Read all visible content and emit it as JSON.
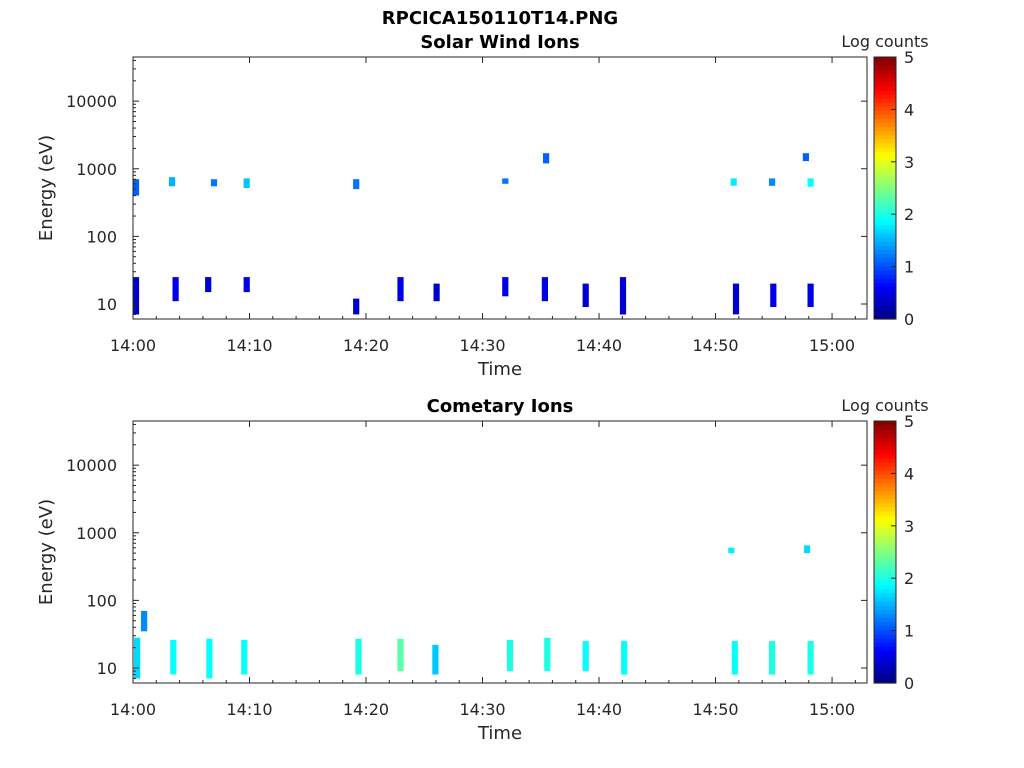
{
  "chart_data": [
    {
      "type": "heatmap",
      "figure_title": "RPCICA150110T14.PNG",
      "title": "Solar Wind Ions",
      "xlabel": "Time",
      "ylabel": "Energy (eV)",
      "colorbar_label": "Log counts",
      "colormap": "jet",
      "clim": [
        0,
        5
      ],
      "colorbar_ticks": [
        "0",
        "1",
        "2",
        "3",
        "4",
        "5"
      ],
      "x_range": [
        "14:00",
        "15:03"
      ],
      "y_scale": "log",
      "y_range": [
        6,
        45000
      ],
      "x_ticks": [
        "14:00",
        "14:10",
        "14:20",
        "14:30",
        "14:40",
        "14:50",
        "15:00"
      ],
      "y_ticks": [
        "10",
        "100",
        "1000",
        "10000"
      ],
      "blocks": [
        {
          "t": 0.1,
          "emin": 7,
          "emax": 25,
          "v": 0.4
        },
        {
          "t": 0.1,
          "emin": 400,
          "emax": 700,
          "v": 1.1
        },
        {
          "t": 3.5,
          "emin": 11,
          "emax": 25,
          "v": 0.5
        },
        {
          "t": 3.2,
          "emin": 550,
          "emax": 750,
          "v": 1.5
        },
        {
          "t": 6.3,
          "emin": 15,
          "emax": 25,
          "v": 0.4
        },
        {
          "t": 6.8,
          "emin": 550,
          "emax": 700,
          "v": 1.2
        },
        {
          "t": 9.6,
          "emin": 15,
          "emax": 25,
          "v": 0.5
        },
        {
          "t": 9.6,
          "emin": 520,
          "emax": 720,
          "v": 1.6
        },
        {
          "t": 19.0,
          "emin": 7,
          "emax": 12,
          "v": 0.4
        },
        {
          "t": 19.0,
          "emin": 500,
          "emax": 700,
          "v": 1.2
        },
        {
          "t": 22.8,
          "emin": 11,
          "emax": 25,
          "v": 0.5
        },
        {
          "t": 25.9,
          "emin": 11,
          "emax": 20,
          "v": 0.4
        },
        {
          "t": 31.8,
          "emin": 13,
          "emax": 25,
          "v": 0.5
        },
        {
          "t": 31.8,
          "emin": 600,
          "emax": 720,
          "v": 1.2
        },
        {
          "t": 35.2,
          "emin": 11,
          "emax": 25,
          "v": 0.5
        },
        {
          "t": 35.3,
          "emin": 1200,
          "emax": 1700,
          "v": 1.1
        },
        {
          "t": 38.7,
          "emin": 9,
          "emax": 20,
          "v": 0.4
        },
        {
          "t": 41.9,
          "emin": 7,
          "emax": 25,
          "v": 0.4
        },
        {
          "t": 51.6,
          "emin": 7,
          "emax": 20,
          "v": 0.4
        },
        {
          "t": 51.4,
          "emin": 560,
          "emax": 720,
          "v": 1.8
        },
        {
          "t": 54.8,
          "emin": 9,
          "emax": 20,
          "v": 0.5
        },
        {
          "t": 54.7,
          "emin": 560,
          "emax": 720,
          "v": 1.3
        },
        {
          "t": 58.0,
          "emin": 9,
          "emax": 20,
          "v": 0.5
        },
        {
          "t": 58.0,
          "emin": 540,
          "emax": 720,
          "v": 1.9
        },
        {
          "t": 57.6,
          "emin": 1300,
          "emax": 1700,
          "v": 1.1
        }
      ]
    },
    {
      "type": "heatmap",
      "title": "Cometary Ions",
      "xlabel": "Time",
      "ylabel": "Energy (eV)",
      "colorbar_label": "Log counts",
      "colormap": "jet",
      "clim": [
        0,
        5
      ],
      "colorbar_ticks": [
        "0",
        "1",
        "2",
        "3",
        "4",
        "5"
      ],
      "x_range": [
        "14:00",
        "15:03"
      ],
      "y_scale": "log",
      "y_range": [
        6,
        45000
      ],
      "x_ticks": [
        "14:00",
        "14:10",
        "14:20",
        "14:30",
        "14:40",
        "14:50",
        "15:00"
      ],
      "y_ticks": [
        "10",
        "100",
        "1000",
        "10000"
      ],
      "blocks": [
        {
          "t": 0.2,
          "emin": 7,
          "emax": 28,
          "v": 1.7
        },
        {
          "t": 0.8,
          "emin": 35,
          "emax": 70,
          "v": 1.3
        },
        {
          "t": 3.3,
          "emin": 8,
          "emax": 26,
          "v": 1.9
        },
        {
          "t": 6.4,
          "emin": 7,
          "emax": 27,
          "v": 1.9
        },
        {
          "t": 9.4,
          "emin": 8,
          "emax": 26,
          "v": 1.9
        },
        {
          "t": 19.2,
          "emin": 8,
          "emax": 27,
          "v": 2.0
        },
        {
          "t": 22.8,
          "emin": 9,
          "emax": 27,
          "v": 2.3
        },
        {
          "t": 25.8,
          "emin": 8,
          "emax": 22,
          "v": 1.6
        },
        {
          "t": 32.2,
          "emin": 9,
          "emax": 26,
          "v": 2.0
        },
        {
          "t": 35.4,
          "emin": 9,
          "emax": 28,
          "v": 2.0
        },
        {
          "t": 38.7,
          "emin": 9,
          "emax": 25,
          "v": 1.9
        },
        {
          "t": 42.0,
          "emin": 8,
          "emax": 25,
          "v": 1.9
        },
        {
          "t": 51.5,
          "emin": 8,
          "emax": 25,
          "v": 1.9
        },
        {
          "t": 54.7,
          "emin": 8,
          "emax": 25,
          "v": 2.0
        },
        {
          "t": 58.0,
          "emin": 8,
          "emax": 25,
          "v": 2.0
        },
        {
          "t": 51.2,
          "emin": 500,
          "emax": 600,
          "v": 1.8
        },
        {
          "t": 57.7,
          "emin": 500,
          "emax": 650,
          "v": 1.7
        }
      ]
    }
  ]
}
